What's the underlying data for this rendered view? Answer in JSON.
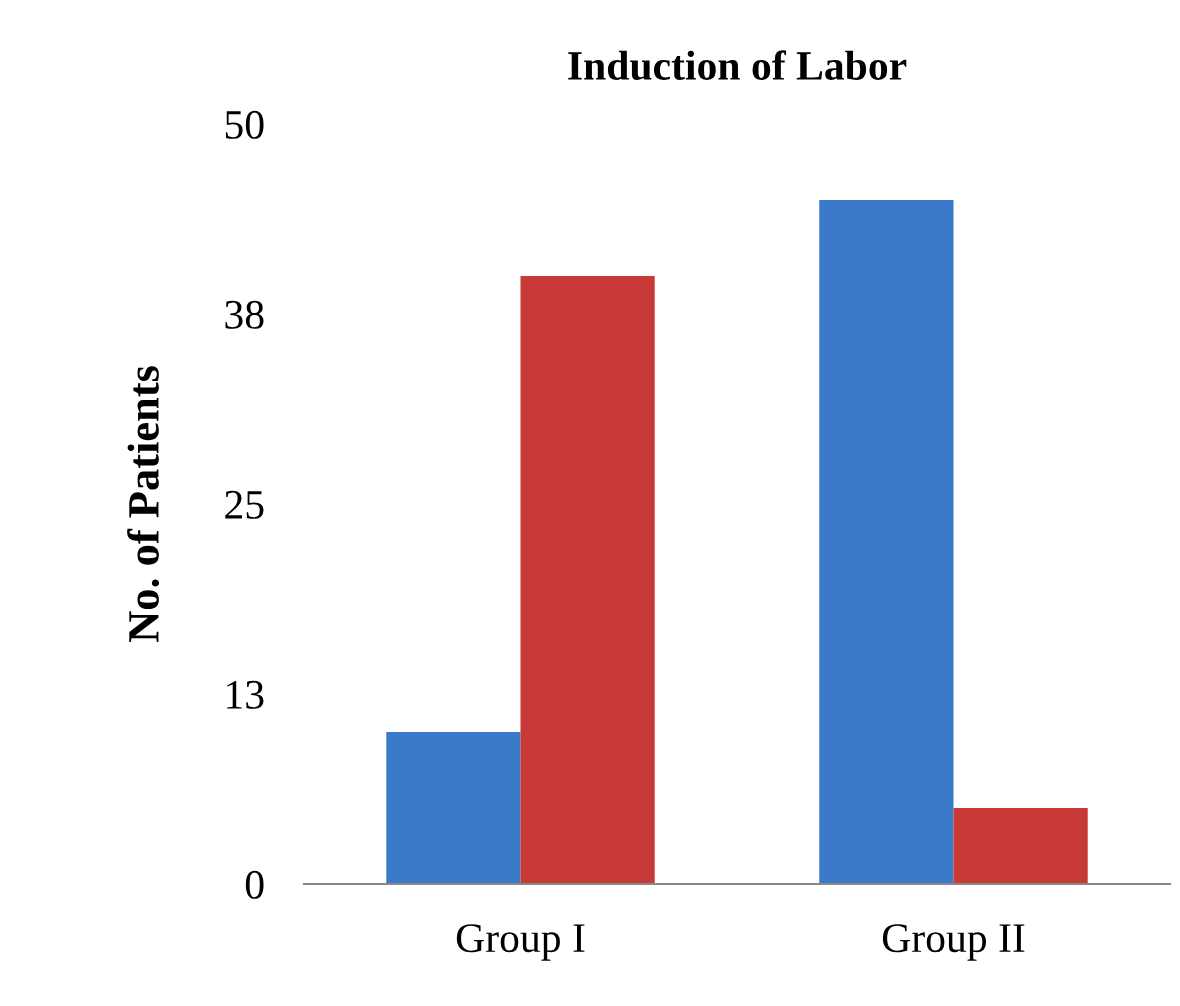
{
  "chart_data": {
    "type": "bar",
    "title": "Induction of Labor",
    "ylabel": "No. of Patients",
    "categories": [
      "Group I",
      "Group II"
    ],
    "series": [
      {
        "color": "#3a7ac8",
        "values": [
          10,
          45
        ]
      },
      {
        "color": "#c83a38",
        "values": [
          40,
          5
        ]
      }
    ],
    "ylim": [
      0,
      50
    ],
    "yticks": [
      0,
      {
        "value": 12.5,
        "label": "13"
      },
      25,
      {
        "value": 37.5,
        "label": "38"
      },
      50
    ],
    "grid": false,
    "legend": false
  }
}
